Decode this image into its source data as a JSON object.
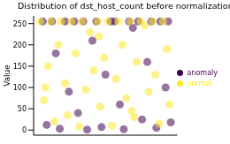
{
  "chart_data": {
    "type": "scatter",
    "title": "Distribution of dst_host_count before normalization",
    "y_label": "Value",
    "xlim": [
      -5,
      105
    ],
    "ylim": [
      -12,
      268
    ],
    "yticks": [
      0,
      50,
      100,
      150,
      200,
      250
    ],
    "tick_labels": "y",
    "legend": "right",
    "marker": "circle",
    "series": [
      {
        "name": "anomaly",
        "color": "#440154",
        "x": [
          2,
          5,
          9,
          12,
          15,
          19,
          22,
          26,
          29,
          33,
          36,
          40,
          43,
          47,
          50,
          54,
          57,
          61,
          64,
          68,
          71,
          75,
          78,
          82,
          85,
          89,
          92,
          96,
          98,
          100
        ],
        "values": [
          255,
          12,
          255,
          180,
          3,
          255,
          90,
          255,
          40,
          255,
          1,
          210,
          255,
          7,
          130,
          255,
          255,
          60,
          2,
          255,
          240,
          255,
          25,
          160,
          255,
          5,
          255,
          100,
          255,
          18
        ]
      },
      {
        "name": "normal",
        "color": "#fde725",
        "x": [
          0,
          3,
          6,
          8,
          11,
          14,
          16,
          19,
          21,
          24,
          27,
          30,
          32,
          35,
          38,
          41,
          44,
          46,
          49,
          52,
          55,
          58,
          60,
          63,
          66,
          69,
          72,
          74,
          77,
          80,
          83,
          86,
          88,
          91,
          94,
          97,
          99,
          4,
          45,
          70
        ],
        "values": [
          255,
          70,
          150,
          255,
          20,
          200,
          255,
          110,
          35,
          255,
          180,
          8,
          255,
          95,
          230,
          140,
          255,
          55,
          170,
          255,
          10,
          120,
          255,
          200,
          75,
          255,
          30,
          160,
          255,
          245,
          90,
          255,
          130,
          15,
          255,
          190,
          60,
          100,
          220,
          45
        ]
      }
    ]
  }
}
